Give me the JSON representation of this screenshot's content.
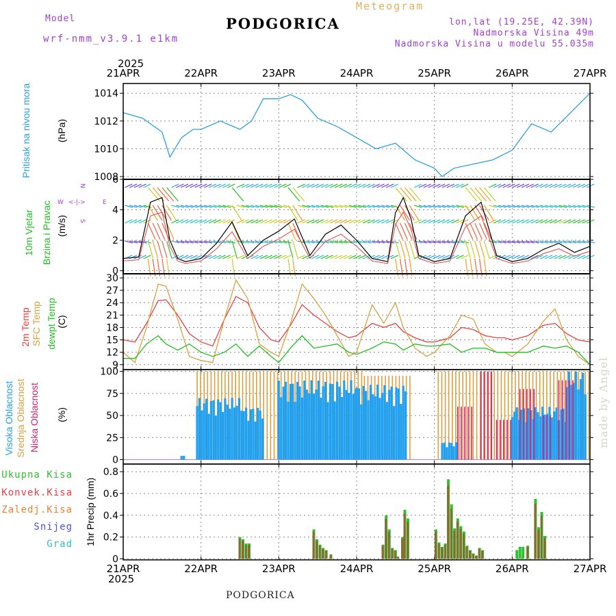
{
  "header": {
    "model_label": "Model",
    "model_name": "wrf-nmm_v3.9.1 e1km",
    "title": "PODGORICA",
    "meteogram": "Meteogram",
    "lonlat": "lon,lat (19.25E, 42.39N)",
    "elevation": "Nadmorska Visina 49m",
    "model_elevation": "Nadmorska Visina u modelu 55.035m",
    "year_top": "2025",
    "year_bottom": "2025",
    "footer": "PODGORICA",
    "watermark": "made by Angel"
  },
  "colors": {
    "pressure": "#2aa0e0",
    "temp2m": "#e84040",
    "sfc": "#d8a040",
    "dewpt": "#20c020",
    "high": "#20a0f0",
    "mid": "#d8a040",
    "low": "#d0207a",
    "total": "#30c030",
    "conv": "#e84040",
    "zaledj": "#f08030",
    "snow": "#5050e0",
    "grad": "#30c0c0",
    "purple": "#a040d0"
  },
  "chart_data": [
    {
      "type": "line",
      "name": "pressure",
      "ylabel": "Pritisak na nivou mora",
      "unit": "(hPa)",
      "ylim": [
        1007.8,
        1014.7
      ],
      "yticks": [
        1008,
        1010,
        1012,
        1014
      ],
      "x_dates": [
        "21APR",
        "22APR",
        "23APR",
        "24APR",
        "25APR",
        "26APR",
        "27APR"
      ],
      "x_days": [
        0,
        0.25,
        0.5,
        0.6,
        0.75,
        0.9,
        1.0,
        1.25,
        1.5,
        1.65,
        1.8,
        2.0,
        2.15,
        2.3,
        2.5,
        2.75,
        3.0,
        3.25,
        3.5,
        3.75,
        4.0,
        4.1,
        4.25,
        4.5,
        4.75,
        5.0,
        5.25,
        5.5,
        5.75,
        6.0
      ],
      "values": [
        1012.6,
        1012.2,
        1011.2,
        1009.4,
        1010.8,
        1011.4,
        1011.4,
        1012.0,
        1011.4,
        1012.0,
        1013.6,
        1013.6,
        1013.9,
        1013.5,
        1012.2,
        1011.6,
        1010.8,
        1010.0,
        1010.4,
        1009.2,
        1008.6,
        1008.0,
        1008.6,
        1008.9,
        1009.2,
        1009.9,
        1011.8,
        1011.2,
        1012.6,
        1014.0
      ]
    },
    {
      "type": "line",
      "name": "wind",
      "ylabel": "10m Vjetar Brzina i Pravac",
      "unit": "(m/s)",
      "ylim": [
        -0.2,
        6.0
      ],
      "yticks": [
        0,
        2,
        4,
        6
      ],
      "direction_key": {
        "n": "N",
        "s": "S",
        "e": "E",
        "w": "W",
        "arrow": "<-|->"
      },
      "x_days": [
        0,
        0.2,
        0.35,
        0.5,
        0.6,
        0.7,
        0.8,
        0.9,
        1.0,
        1.2,
        1.4,
        1.6,
        1.8,
        2.0,
        2.2,
        2.4,
        2.6,
        2.8,
        3.0,
        3.2,
        3.4,
        3.5,
        3.6,
        3.7,
        3.8,
        4.0,
        4.2,
        4.4,
        4.6,
        4.8,
        5.0,
        5.2,
        5.4,
        5.6,
        5.8,
        6.0
      ],
      "values": [
        0.8,
        0.9,
        4.5,
        4.8,
        2.0,
        0.8,
        0.6,
        0.7,
        0.8,
        1.8,
        3.2,
        1.0,
        2.0,
        2.6,
        3.4,
        1.0,
        2.4,
        3.0,
        2.0,
        0.8,
        0.6,
        3.8,
        4.8,
        3.4,
        1.0,
        0.6,
        0.8,
        3.6,
        4.5,
        1.0,
        0.6,
        0.8,
        1.4,
        1.8,
        1.2,
        1.6
      ]
    },
    {
      "type": "line",
      "name": "temperature",
      "ylabel": "2m Temp / SFC Temp / dewpt Temp",
      "unit": "(C)",
      "ylim": [
        7.8,
        31.0
      ],
      "yticks": [
        9,
        12,
        15,
        18,
        21,
        24,
        27,
        30
      ],
      "x_days": [
        0,
        0.15,
        0.3,
        0.45,
        0.55,
        0.7,
        0.85,
        1.0,
        1.15,
        1.3,
        1.45,
        1.6,
        1.75,
        1.9,
        2.0,
        2.15,
        2.3,
        2.45,
        2.6,
        2.75,
        2.9,
        3.0,
        3.2,
        3.35,
        3.5,
        3.6,
        3.75,
        3.9,
        4.0,
        4.2,
        4.35,
        4.5,
        4.65,
        4.8,
        4.9,
        5.0,
        5.2,
        5.4,
        5.55,
        5.7,
        5.85,
        6.0
      ],
      "series": [
        {
          "name": "2m Temp",
          "values": [
            15.0,
            14.5,
            19.0,
            24.5,
            24.7,
            21.0,
            16.5,
            14.5,
            13.5,
            20.0,
            25.5,
            24.0,
            18.0,
            15.0,
            14.5,
            18.5,
            23.5,
            21.0,
            19.0,
            17.0,
            15.5,
            16.0,
            19.0,
            18.0,
            19.0,
            17.0,
            15.5,
            14.5,
            14.5,
            15.5,
            18.0,
            17.5,
            16.0,
            15.5,
            15.5,
            15.0,
            16.0,
            18.5,
            19.0,
            16.5,
            15.0,
            14.5
          ]
        },
        {
          "name": "SFC Temp",
          "values": [
            12.0,
            9.5,
            18.0,
            28.5,
            28.0,
            20.0,
            11.0,
            10.0,
            9.5,
            20.0,
            29.5,
            25.0,
            14.0,
            12.0,
            11.0,
            19.0,
            28.5,
            25.0,
            21.0,
            16.0,
            11.0,
            12.0,
            23.5,
            19.0,
            24.0,
            18.0,
            13.0,
            11.0,
            12.0,
            16.0,
            21.0,
            20.0,
            14.0,
            12.0,
            12.0,
            11.0,
            14.0,
            19.5,
            22.5,
            15.0,
            11.0,
            9.0
          ]
        },
        {
          "name": "dewpt Temp",
          "values": [
            10.5,
            10.5,
            14.0,
            16.0,
            14.0,
            12.5,
            14.0,
            12.0,
            11.0,
            12.0,
            14.0,
            11.0,
            13.5,
            11.0,
            9.5,
            13.0,
            16.0,
            13.0,
            13.5,
            14.0,
            12.0,
            11.5,
            13.0,
            14.5,
            14.0,
            12.5,
            14.0,
            13.5,
            13.5,
            14.0,
            12.0,
            13.0,
            13.0,
            12.0,
            12.0,
            12.0,
            12.0,
            13.5,
            13.0,
            13.5,
            12.0,
            9.0
          ]
        }
      ]
    },
    {
      "type": "bar",
      "name": "cloud",
      "ylabel": "Visoka Oblacnost / Srednja Oblacnost / Niska Oblacnost",
      "unit": "(%)",
      "ylim": [
        -5,
        102
      ],
      "yticks": [
        0,
        25,
        50,
        75,
        100
      ],
      "series": [
        {
          "name": "Visoka Oblacnost",
          "segments": [
            [
              0.75,
              0.8,
              5
            ],
            [
              0.95,
              1.55,
              70
            ],
            [
              1.55,
              1.8,
              60
            ],
            [
              2.0,
              3.0,
              90
            ],
            [
              3.0,
              3.65,
              85
            ],
            [
              4.1,
              4.3,
              20
            ],
            [
              5.0,
              5.7,
              60
            ],
            [
              5.7,
              5.95,
              100
            ]
          ]
        },
        {
          "name": "Srednja Oblacnost",
          "segments": [
            [
              0.95,
              3.1,
              100
            ],
            [
              3.1,
              3.7,
              95
            ],
            [
              4.05,
              6.0,
              100
            ]
          ]
        },
        {
          "name": "Niska Oblacnost",
          "segments": [
            [
              4.3,
              4.5,
              60
            ],
            [
              4.6,
              4.75,
              100
            ],
            [
              4.8,
              5.0,
              45
            ],
            [
              5.1,
              5.3,
              80
            ],
            [
              5.4,
              5.5,
              50
            ],
            [
              5.6,
              5.8,
              90
            ]
          ]
        }
      ]
    },
    {
      "type": "bar",
      "name": "precip",
      "ylabel": "1hr Precip",
      "unit": "(mm)",
      "ylim": [
        -0.01,
        0.87
      ],
      "yticks": [
        0,
        0.2,
        0.4,
        0.6,
        0.8
      ],
      "legend": [
        "Ukupna Kisa",
        "Konvek.Kisa",
        "Zaledj.Kisa",
        "Snijeg",
        "Grad"
      ],
      "x_days": [
        1.5,
        1.54,
        1.58,
        1.62,
        2.45,
        2.49,
        2.53,
        2.57,
        2.61,
        2.67,
        3.34,
        3.38,
        3.42,
        3.46,
        3.5,
        3.53,
        3.59,
        3.62,
        3.66,
        4.02,
        4.06,
        4.1,
        4.14,
        4.18,
        4.22,
        4.26,
        4.3,
        4.34,
        4.38,
        4.42,
        4.46,
        4.5,
        4.54,
        4.58,
        4.62,
        5.06,
        5.1,
        5.14,
        5.2,
        5.3,
        5.34,
        5.38,
        5.42
      ],
      "values": [
        0.2,
        0.18,
        0.14,
        0.14,
        0.27,
        0.18,
        0.13,
        0.1,
        0.08,
        0.04,
        0.13,
        0.4,
        0.27,
        0.1,
        0.08,
        0.02,
        0.2,
        0.45,
        0.37,
        0.27,
        0.15,
        0.11,
        0.14,
        0.73,
        0.5,
        0.28,
        0.37,
        0.3,
        0.25,
        0.12,
        0.08,
        0.05,
        0.03,
        0.1,
        0.08,
        0.08,
        0.11,
        0.11,
        0.12,
        0.55,
        0.29,
        0.43,
        0.21
      ],
      "green_only_x_days": [
        5.06,
        5.1,
        5.14
      ]
    }
  ],
  "legends": {
    "temp": [
      "2m Temp",
      "SFC Temp",
      "dewpt Temp"
    ],
    "cloud": [
      "Visoka Oblacnost",
      "Srednja Oblacnost",
      "Niska Oblacnost"
    ],
    "precip": [
      "Ukupna Kisa",
      "Konvek.Kisa",
      "Zaledj.Kisa",
      "Snijeg",
      "Grad"
    ]
  }
}
